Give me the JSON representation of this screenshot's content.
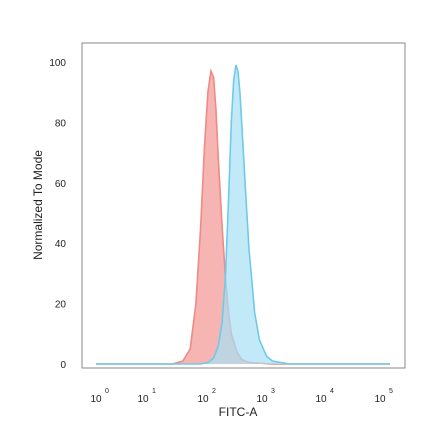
{
  "chart_data": {
    "type": "area",
    "xlabel": "FITC-A",
    "ylabel": "Normalized To Mode",
    "x_scale": "log",
    "xlim": [
      1,
      100000
    ],
    "ylim": [
      0,
      105
    ],
    "grid": false,
    "legend": "none",
    "x_ticks": [
      {
        "base": "10",
        "exp": "0",
        "value": 1
      },
      {
        "base": "10",
        "exp": "1",
        "value": 10
      },
      {
        "base": "10",
        "exp": "2",
        "value": 100
      },
      {
        "base": "10",
        "exp": "3",
        "value": 1000
      },
      {
        "base": "10",
        "exp": "4",
        "value": 10000
      },
      {
        "base": "10",
        "exp": "5",
        "value": 100000
      }
    ],
    "y_ticks": [
      "0",
      "20",
      "40",
      "60",
      "80",
      "100"
    ],
    "series": [
      {
        "color": "#f08a86",
        "fill": "#f4a8a4",
        "x": [
          1,
          20,
          30,
          40,
          50,
          60,
          70,
          80,
          90,
          100,
          110,
          120,
          140,
          160,
          180,
          200,
          250,
          300,
          400,
          1000,
          100000
        ],
        "y": [
          0,
          0,
          1,
          5,
          20,
          45,
          72,
          90,
          97,
          95,
          84,
          68,
          45,
          28,
          17,
          10,
          4,
          1.5,
          0.5,
          0,
          0
        ]
      },
      {
        "color": "#6ecbe8",
        "fill": "#a8e0f4",
        "x": [
          1,
          60,
          80,
          100,
          120,
          140,
          160,
          180,
          200,
          220,
          240,
          260,
          280,
          300,
          350,
          400,
          500,
          600,
          800,
          1000,
          2000,
          100000
        ],
        "y": [
          0,
          0,
          0.5,
          2,
          6,
          14,
          30,
          55,
          80,
          94,
          99,
          97,
          90,
          80,
          57,
          38,
          17,
          8,
          2.5,
          1,
          0,
          0
        ]
      }
    ]
  }
}
